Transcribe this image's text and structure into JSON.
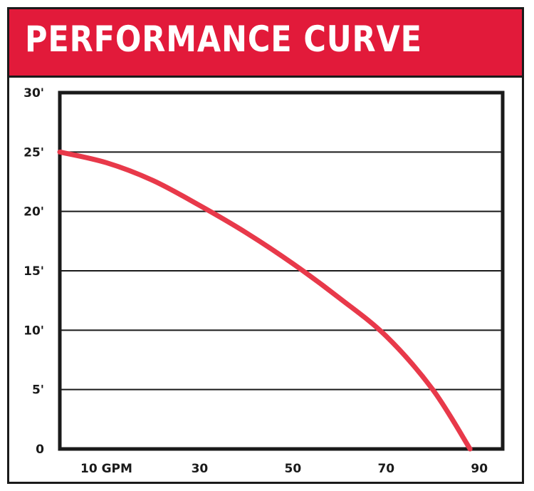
{
  "chart_data": {
    "type": "line",
    "title": "PERFORMANCE CURVE",
    "xlabel": "",
    "ylabel": "",
    "x_ticks": [
      {
        "value": 10,
        "label": "10 GPM"
      },
      {
        "value": 30,
        "label": "30"
      },
      {
        "value": 50,
        "label": "50"
      },
      {
        "value": 70,
        "label": "70"
      },
      {
        "value": 90,
        "label": "90"
      }
    ],
    "y_ticks": [
      {
        "value": 0,
        "label": "0"
      },
      {
        "value": 5,
        "label": "5'"
      },
      {
        "value": 10,
        "label": "10'"
      },
      {
        "value": 15,
        "label": "15'"
      },
      {
        "value": 20,
        "label": "20'"
      },
      {
        "value": 25,
        "label": "25'"
      },
      {
        "value": 30,
        "label": "30'"
      }
    ],
    "xlim": [
      0,
      95
    ],
    "ylim": [
      0,
      30
    ],
    "grid": "horizontal",
    "series": [
      {
        "name": "",
        "color": "#e8394a",
        "x": [
          0,
          10,
          20,
          30,
          40,
          50,
          60,
          70,
          80,
          88
        ],
        "y": [
          25,
          24.1,
          22.6,
          20.5,
          18.2,
          15.6,
          12.7,
          9.5,
          5,
          0
        ]
      }
    ]
  }
}
